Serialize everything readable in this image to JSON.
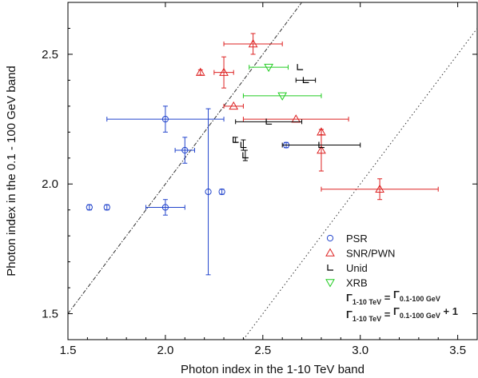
{
  "chart_data": {
    "type": "scatter",
    "xlabel": "Photon index in the 1-10 TeV band",
    "ylabel": "Photon index in the 0.1 - 100 GeV band",
    "xlim": [
      1.5,
      3.6
    ],
    "ylim": [
      1.4,
      2.7
    ],
    "xticks": [
      "1.5",
      "2.0",
      "2.5",
      "3.0",
      "3.5"
    ],
    "yticks": [
      "1.5",
      "2.0",
      "2.5"
    ],
    "grid": false,
    "legend_position": "bottom-right",
    "colors": {
      "PSR": "#2244cc",
      "SNR/PWN": "#dd2222",
      "Unid": "#000000",
      "XRB": "#22cc22"
    },
    "series": [
      {
        "name": "PSR",
        "marker": "circle",
        "points": [
          {
            "x": 2.0,
            "y": 2.25,
            "xerr": [
              0.3,
              0.3
            ],
            "yerr": [
              0.05,
              0.05
            ]
          },
          {
            "x": 2.1,
            "y": 2.13,
            "xerr": [
              0.05,
              0.05
            ],
            "yerr": [
              0.05,
              0.05
            ]
          },
          {
            "x": 2.0,
            "y": 1.91,
            "xerr": [
              0.1,
              0.1
            ],
            "yerr": [
              0.03,
              0.03
            ]
          },
          {
            "x": 2.22,
            "y": 1.97,
            "xerr": [
              0.0,
              0.0
            ],
            "yerr": [
              0.32,
              0.32
            ]
          },
          {
            "x": 1.61,
            "y": 1.91,
            "xerr": [
              0.0,
              0.0
            ],
            "yerr": [
              0.01,
              0.01
            ]
          },
          {
            "x": 1.7,
            "y": 1.91,
            "xerr": [
              0.0,
              0.0
            ],
            "yerr": [
              0.01,
              0.01
            ]
          },
          {
            "x": 2.62,
            "y": 2.15,
            "xerr": [
              0.0,
              0.0
            ],
            "yerr": [
              0.01,
              0.01
            ]
          },
          {
            "x": 2.29,
            "y": 1.97,
            "xerr": [
              0.0,
              0.0
            ],
            "yerr": [
              0.01,
              0.01
            ]
          }
        ]
      },
      {
        "name": "SNR/PWN",
        "marker": "triangle-up",
        "points": [
          {
            "x": 2.45,
            "y": 2.54,
            "xerr": [
              0.15,
              0.15
            ],
            "yerr": [
              0.04,
              0.04
            ]
          },
          {
            "x": 2.3,
            "y": 2.43,
            "xerr": [
              0.05,
              0.05
            ],
            "yerr": [
              0.06,
              0.06
            ]
          },
          {
            "x": 2.35,
            "y": 2.3,
            "xerr": [
              0.05,
              0.05
            ],
            "yerr": [
              0.0,
              0.0
            ]
          },
          {
            "x": 2.67,
            "y": 2.25,
            "xerr": [
              0.27,
              0.27
            ],
            "yerr": [
              0.0,
              0.0
            ]
          },
          {
            "x": 2.8,
            "y": 2.13,
            "xerr": [
              0.0,
              0.0
            ],
            "yerr": [
              0.08,
              0.08
            ]
          },
          {
            "x": 3.1,
            "y": 1.98,
            "xerr": [
              0.3,
              0.3
            ],
            "yerr": [
              0.04,
              0.04
            ]
          },
          {
            "x": 2.18,
            "y": 2.43,
            "xerr": [
              0.0,
              0.0
            ],
            "yerr": [
              0.01,
              0.01
            ]
          },
          {
            "x": 2.8,
            "y": 2.2,
            "xerr": [
              0.0,
              0.0
            ],
            "yerr": [
              0.01,
              0.01
            ]
          }
        ]
      },
      {
        "name": "Unid",
        "marker": "corner",
        "points": [
          {
            "x": 2.53,
            "y": 2.24,
            "xerr": [
              0.17,
              0.17
            ],
            "yerr": [
              0.0,
              0.0
            ]
          },
          {
            "x": 2.8,
            "y": 2.15,
            "xerr": [
              0.2,
              0.2
            ],
            "yerr": [
              0.0,
              0.0
            ]
          },
          {
            "x": 2.72,
            "y": 2.4,
            "xerr": [
              0.05,
              0.05
            ],
            "yerr": [
              0.0,
              0.0
            ]
          },
          {
            "x": 2.69,
            "y": 2.45,
            "xerr": [
              0.0,
              0.0
            ],
            "yerr": [
              0.0,
              0.0
            ]
          },
          {
            "x": 2.4,
            "y": 2.15,
            "xerr": [
              0.0,
              0.0
            ],
            "yerr": [
              0.02,
              0.02
            ]
          },
          {
            "x": 2.41,
            "y": 2.11,
            "xerr": [
              0.0,
              0.0
            ],
            "yerr": [
              0.02,
              0.02
            ]
          },
          {
            "x": 2.36,
            "y": 2.17,
            "xerr": [
              0.0,
              0.0
            ],
            "yerr": [
              0.01,
              0.01
            ]
          }
        ]
      },
      {
        "name": "XRB",
        "marker": "triangle-down",
        "points": [
          {
            "x": 2.53,
            "y": 2.45,
            "xerr": [
              0.1,
              0.1
            ],
            "yerr": [
              0.0,
              0.0
            ]
          },
          {
            "x": 2.6,
            "y": 2.34,
            "xerr": [
              0.2,
              0.2
            ],
            "yerr": [
              0.0,
              0.0
            ]
          }
        ]
      }
    ],
    "lines": [
      {
        "style": "dash-dot",
        "slope": 1,
        "intercept": 0
      },
      {
        "style": "dotted",
        "slope": 1,
        "intercept": -1
      }
    ],
    "legend_entries": [
      {
        "label": "PSR",
        "marker": "circle",
        "color": "#2244cc"
      },
      {
        "label": "SNR/PWN",
        "marker": "triangle-up",
        "color": "#dd2222"
      },
      {
        "label": "Unid",
        "marker": "corner",
        "color": "#000000"
      },
      {
        "label": "XRB",
        "marker": "triangle-down",
        "color": "#22cc22"
      }
    ],
    "formulas": [
      {
        "lhs_base": "Γ",
        "lhs_sub": "1-10 TeV",
        "rhs_base": "Γ",
        "rhs_sub": "0.1-100 GeV",
        "suffix": ""
      },
      {
        "lhs_base": "Γ",
        "lhs_sub": "1-10 TeV",
        "rhs_base": "Γ",
        "rhs_sub": "0.1-100 GeV",
        "suffix": " + 1"
      }
    ]
  }
}
